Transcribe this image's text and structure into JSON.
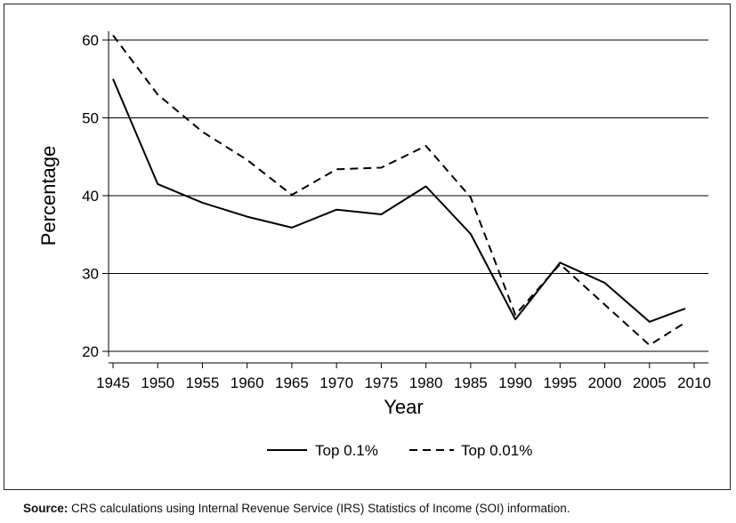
{
  "chart_data": {
    "type": "line",
    "title": "",
    "xlabel": "Year",
    "ylabel": "Percentage",
    "x": [
      1945,
      1950,
      1955,
      1960,
      1965,
      1970,
      1975,
      1980,
      1985,
      1990,
      1995,
      2000,
      2005,
      2009
    ],
    "xticks": [
      "1945",
      "1950",
      "1955",
      "1960",
      "1965",
      "1970",
      "1975",
      "1980",
      "1985",
      "1990",
      "1995",
      "2000",
      "2005",
      "2010"
    ],
    "xlim": [
      1945,
      2010
    ],
    "yticks": [
      "20",
      "30",
      "40",
      "50",
      "60"
    ],
    "ylim": [
      20,
      60
    ],
    "grid": true,
    "legend_position": "bottom",
    "series": [
      {
        "name": "Top 0.1%",
        "style": "solid",
        "values": [
          55.0,
          41.5,
          39.1,
          37.3,
          35.9,
          38.2,
          37.6,
          41.2,
          35.1,
          24.1,
          31.4,
          28.8,
          23.8,
          25.5
        ]
      },
      {
        "name": "Top 0.01%",
        "style": "dashed",
        "values": [
          60.6,
          53.0,
          48.2,
          44.6,
          40.1,
          43.4,
          43.6,
          46.4,
          39.8,
          24.7,
          31.2,
          26.0,
          20.8,
          23.7
        ]
      }
    ]
  },
  "source": {
    "label": "Source:",
    "text": "CRS calculations using Internal Revenue Service (IRS) Statistics of Income (SOI) information."
  },
  "colors": {
    "line": "#000000",
    "grid": "#000000",
    "axis": "#000000"
  }
}
